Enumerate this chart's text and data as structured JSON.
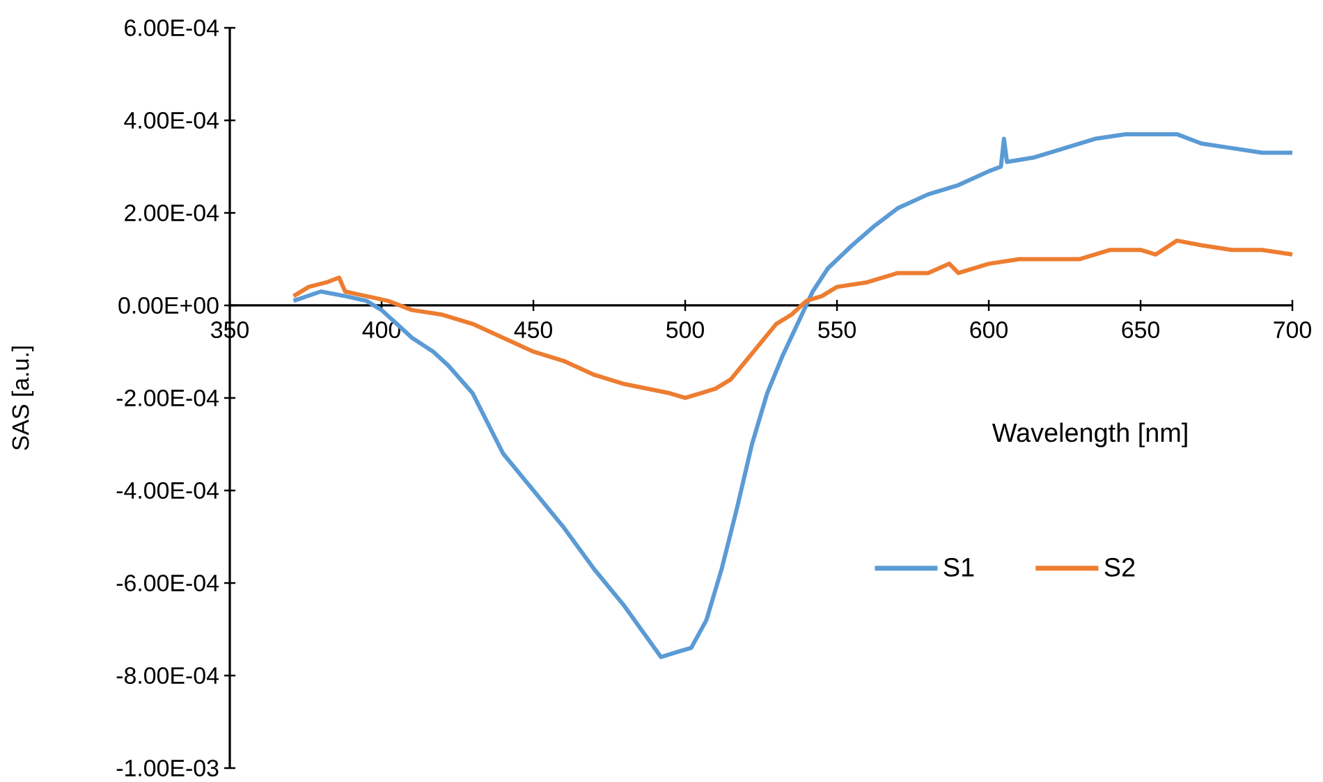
{
  "chart_data": {
    "type": "line",
    "xlabel": "Wavelength [nm]",
    "ylabel": "SAS [a.u.]",
    "xlim": [
      350,
      700
    ],
    "xticks": [
      350,
      400,
      450,
      500,
      550,
      600,
      650,
      700
    ],
    "ylim": [
      -0.001,
      0.0006
    ],
    "yticks": [
      {
        "value": -0.001,
        "label": "-1.00E-03"
      },
      {
        "value": -0.0008,
        "label": "-8.00E-04"
      },
      {
        "value": -0.0006,
        "label": "-6.00E-04"
      },
      {
        "value": -0.0004,
        "label": "-4.00E-04"
      },
      {
        "value": -0.0002,
        "label": "-2.00E-04"
      },
      {
        "value": 0,
        "label": "0.00E+00"
      },
      {
        "value": 0.0002,
        "label": "2.00E-04"
      },
      {
        "value": 0.0004,
        "label": "4.00E-04"
      },
      {
        "value": 0.0006,
        "label": "6.00E-04"
      }
    ],
    "legend": "bottom right",
    "series": [
      {
        "name": "S1",
        "color": "#5b9bd5",
        "x": [
          371,
          380,
          388,
          395,
          400,
          405,
          410,
          417,
          422,
          430,
          440,
          450,
          460,
          470,
          480,
          492,
          497,
          502,
          507,
          512,
          517,
          522,
          527,
          532,
          537,
          542,
          547,
          555,
          562,
          570,
          580,
          590,
          600,
          604,
          605,
          606,
          615,
          625,
          635,
          645,
          655,
          662,
          670,
          680,
          690,
          700
        ],
        "values": [
          1e-05,
          3e-05,
          2e-05,
          1e-05,
          -1e-05,
          -4e-05,
          -7e-05,
          -0.0001,
          -0.00013,
          -0.00019,
          -0.00032,
          -0.0004,
          -0.00048,
          -0.00057,
          -0.00065,
          -0.00076,
          -0.00075,
          -0.00074,
          -0.00068,
          -0.00057,
          -0.00044,
          -0.0003,
          -0.00019,
          -0.00011,
          -4e-05,
          3e-05,
          8e-05,
          0.00013,
          0.00017,
          0.00021,
          0.00024,
          0.00026,
          0.00029,
          0.0003,
          0.00036,
          0.00031,
          0.00032,
          0.00034,
          0.00036,
          0.00037,
          0.00037,
          0.00037,
          0.00035,
          0.00034,
          0.00033,
          0.00033
        ]
      },
      {
        "name": "S2",
        "color": "#ed7d31",
        "x": [
          371,
          376,
          382,
          386,
          388,
          395,
          402,
          410,
          420,
          430,
          440,
          450,
          460,
          470,
          480,
          495,
          500,
          505,
          510,
          515,
          520,
          525,
          530,
          535,
          540,
          545,
          550,
          560,
          570,
          580,
          587,
          590,
          600,
          610,
          620,
          630,
          640,
          650,
          655,
          662,
          670,
          680,
          690,
          700
        ],
        "values": [
          2e-05,
          4e-05,
          5e-05,
          6e-05,
          3e-05,
          2e-05,
          1e-05,
          -1e-05,
          -2e-05,
          -4e-05,
          -7e-05,
          -0.0001,
          -0.00012,
          -0.00015,
          -0.00017,
          -0.00019,
          -0.0002,
          -0.00019,
          -0.00018,
          -0.00016,
          -0.00012,
          -8e-05,
          -4e-05,
          -2e-05,
          1e-05,
          2e-05,
          4e-05,
          5e-05,
          7e-05,
          7e-05,
          9e-05,
          7e-05,
          9e-05,
          0.0001,
          0.0001,
          0.0001,
          0.00012,
          0.00012,
          0.00011,
          0.00014,
          0.00013,
          0.00012,
          0.00012,
          0.00011
        ]
      }
    ]
  }
}
